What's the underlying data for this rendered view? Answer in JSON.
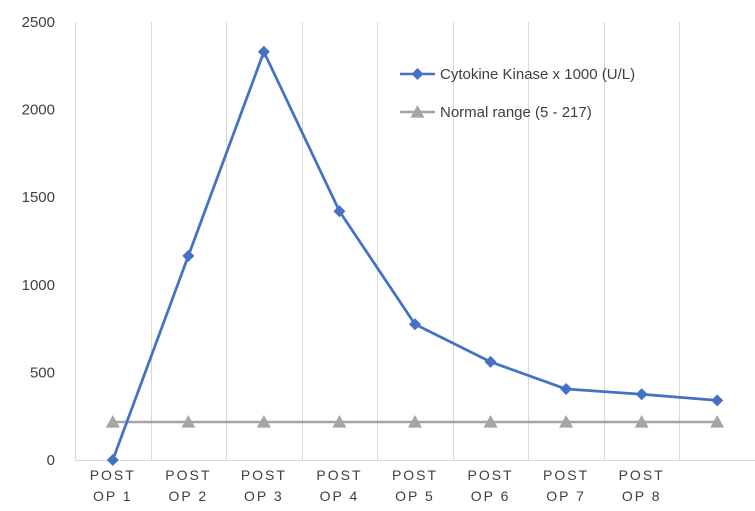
{
  "chart_data": {
    "type": "line",
    "title": "",
    "xlabel": "",
    "ylabel": "",
    "categories": [
      [
        "POST",
        "OP 1"
      ],
      [
        "POST",
        "OP 2"
      ],
      [
        "POST",
        "OP 3"
      ],
      [
        "POST",
        "OP 4"
      ],
      [
        "POST",
        "OP 5"
      ],
      [
        "POST",
        "OP 6"
      ],
      [
        "POST",
        "OP 7"
      ],
      [
        "POST",
        "OP 8"
      ],
      [
        "",
        ""
      ]
    ],
    "ylim": [
      0,
      2500
    ],
    "yticks": [
      0,
      500,
      1000,
      1500,
      2000,
      2500
    ],
    "grid": {
      "vertical": true,
      "horizontal": false
    },
    "legend_position": "top-right",
    "series": [
      {
        "name": "Cytokine Kinase x 1000 (U/L)",
        "color": "#4472C4",
        "marker": "diamond",
        "values": [
          0,
          1165,
          2330,
          1420,
          775,
          560,
          405,
          375,
          340
        ]
      },
      {
        "name": "Normal range (5 - 217)",
        "color": "#A5A5A5",
        "marker": "triangle",
        "values": [
          217,
          217,
          217,
          217,
          217,
          217,
          217,
          217,
          217
        ]
      }
    ]
  }
}
